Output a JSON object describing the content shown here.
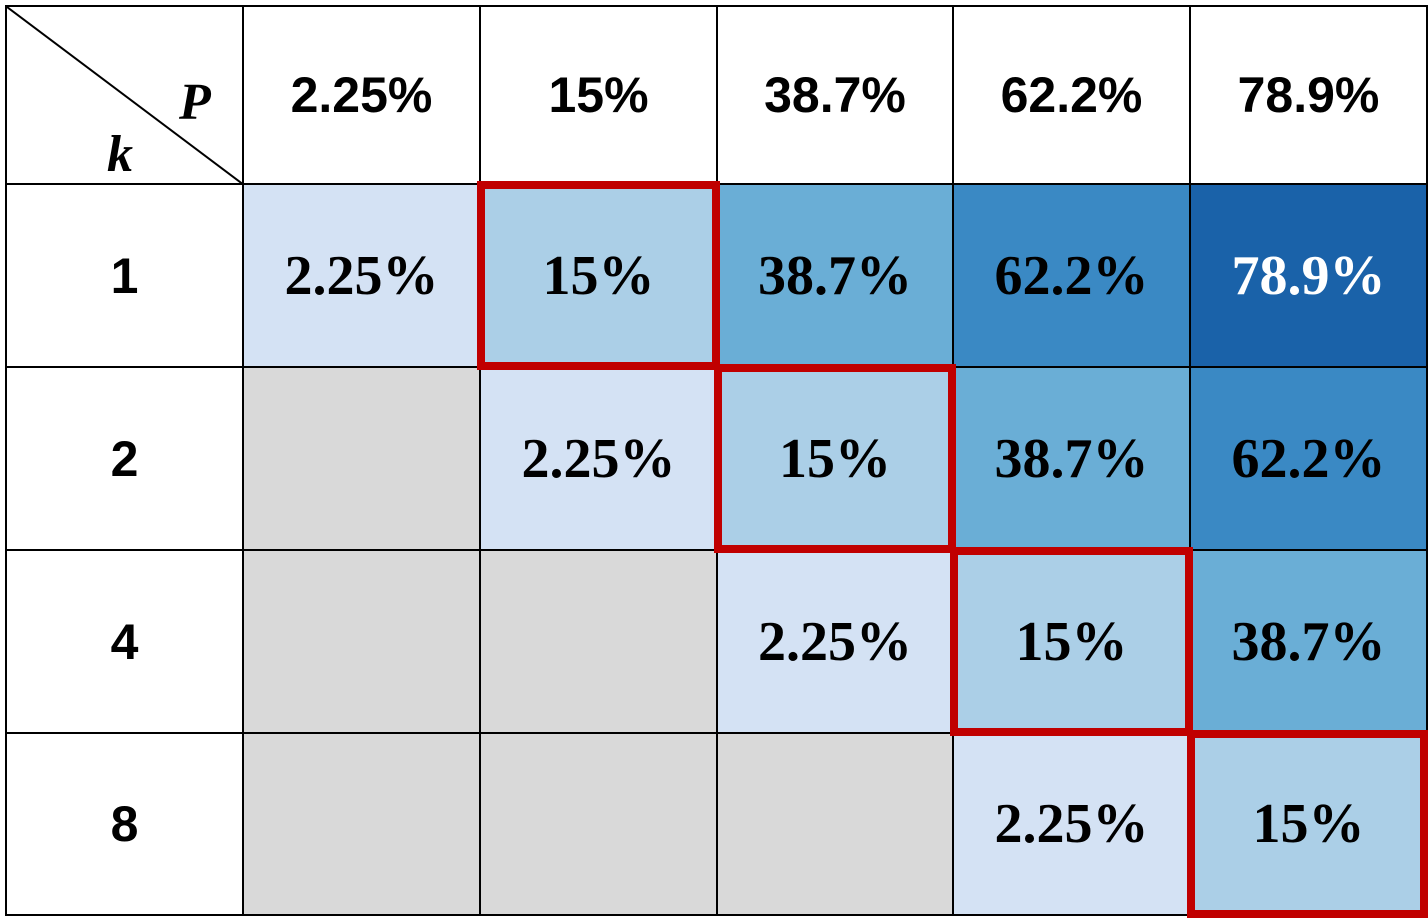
{
  "table": {
    "corner": {
      "column_label": "P",
      "row_label": "k"
    },
    "columns": [
      "2.25%",
      "15%",
      "38.7%",
      "62.2%",
      "78.9%"
    ],
    "rows": [
      {
        "label": "1",
        "cells": [
          {
            "text": "2.25%",
            "color": "#d4e2f4"
          },
          {
            "text": "15%",
            "color": "#abcfe7",
            "highlight": true
          },
          {
            "text": "38.7%",
            "color": "#6aaed6"
          },
          {
            "text": "62.2%",
            "color": "#3a89c4"
          },
          {
            "text": "78.9%",
            "color": "#1a62a9",
            "text_color": "#ffffff"
          }
        ]
      },
      {
        "label": "2",
        "cells": [
          {
            "text": null,
            "color": "#d9d9d9"
          },
          {
            "text": "2.25%",
            "color": "#d4e2f4"
          },
          {
            "text": "15%",
            "color": "#abcfe7",
            "highlight": true
          },
          {
            "text": "38.7%",
            "color": "#6aaed6"
          },
          {
            "text": "62.2%",
            "color": "#3a89c4"
          }
        ]
      },
      {
        "label": "4",
        "cells": [
          {
            "text": null,
            "color": "#d9d9d9"
          },
          {
            "text": null,
            "color": "#d9d9d9"
          },
          {
            "text": "2.25%",
            "color": "#d4e2f4"
          },
          {
            "text": "15%",
            "color": "#abcfe7",
            "highlight": true
          },
          {
            "text": "38.7%",
            "color": "#6aaed6"
          }
        ]
      },
      {
        "label": "8",
        "cells": [
          {
            "text": null,
            "color": "#d9d9d9"
          },
          {
            "text": null,
            "color": "#d9d9d9"
          },
          {
            "text": null,
            "color": "#d9d9d9"
          },
          {
            "text": "2.25%",
            "color": "#d4e2f4"
          },
          {
            "text": "15%",
            "color": "#abcfe7",
            "highlight": true
          }
        ]
      }
    ]
  }
}
